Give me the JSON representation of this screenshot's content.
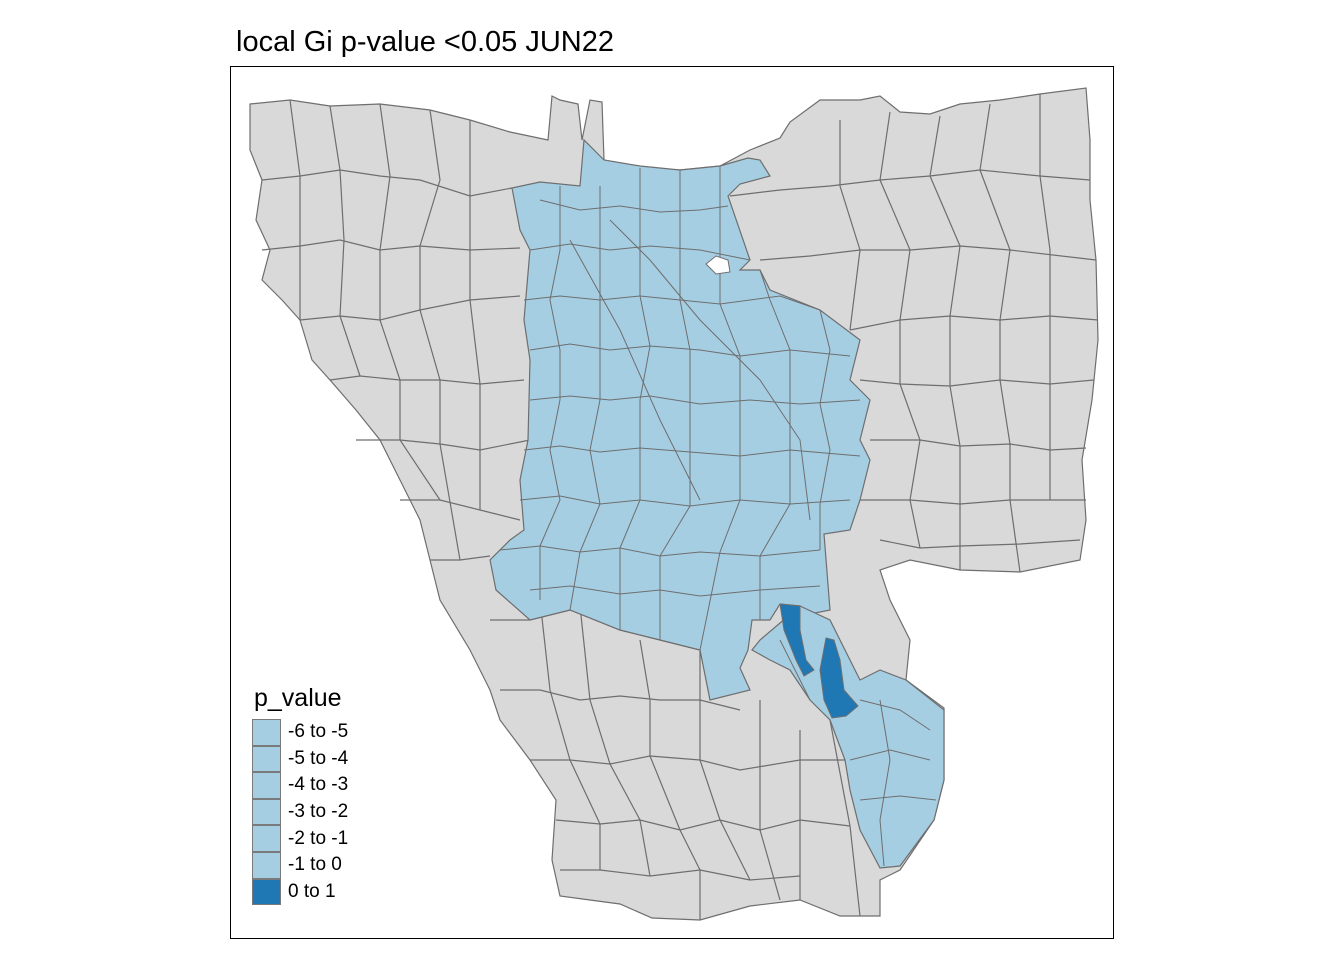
{
  "title": "local Gi p-value <0.05 JUN22",
  "colors": {
    "land_gray": "#d9d9d9",
    "light_blue": "#a6cee3",
    "dark_blue": "#1f78b4",
    "border": "#6e6e6e"
  },
  "legend": {
    "title": "p_value",
    "items": [
      {
        "label": "-6 to -5",
        "color": "#a6cee3"
      },
      {
        "label": "-5 to -4",
        "color": "#a6cee3"
      },
      {
        "label": "-4 to -3",
        "color": "#a6cee3"
      },
      {
        "label": "-3 to -2",
        "color": "#a6cee3"
      },
      {
        "label": "-2 to -1",
        "color": "#a6cee3"
      },
      {
        "label": "-1 to 0",
        "color": "#a6cee3"
      },
      {
        "label": "0 to 1",
        "color": "#1f78b4"
      }
    ]
  }
}
